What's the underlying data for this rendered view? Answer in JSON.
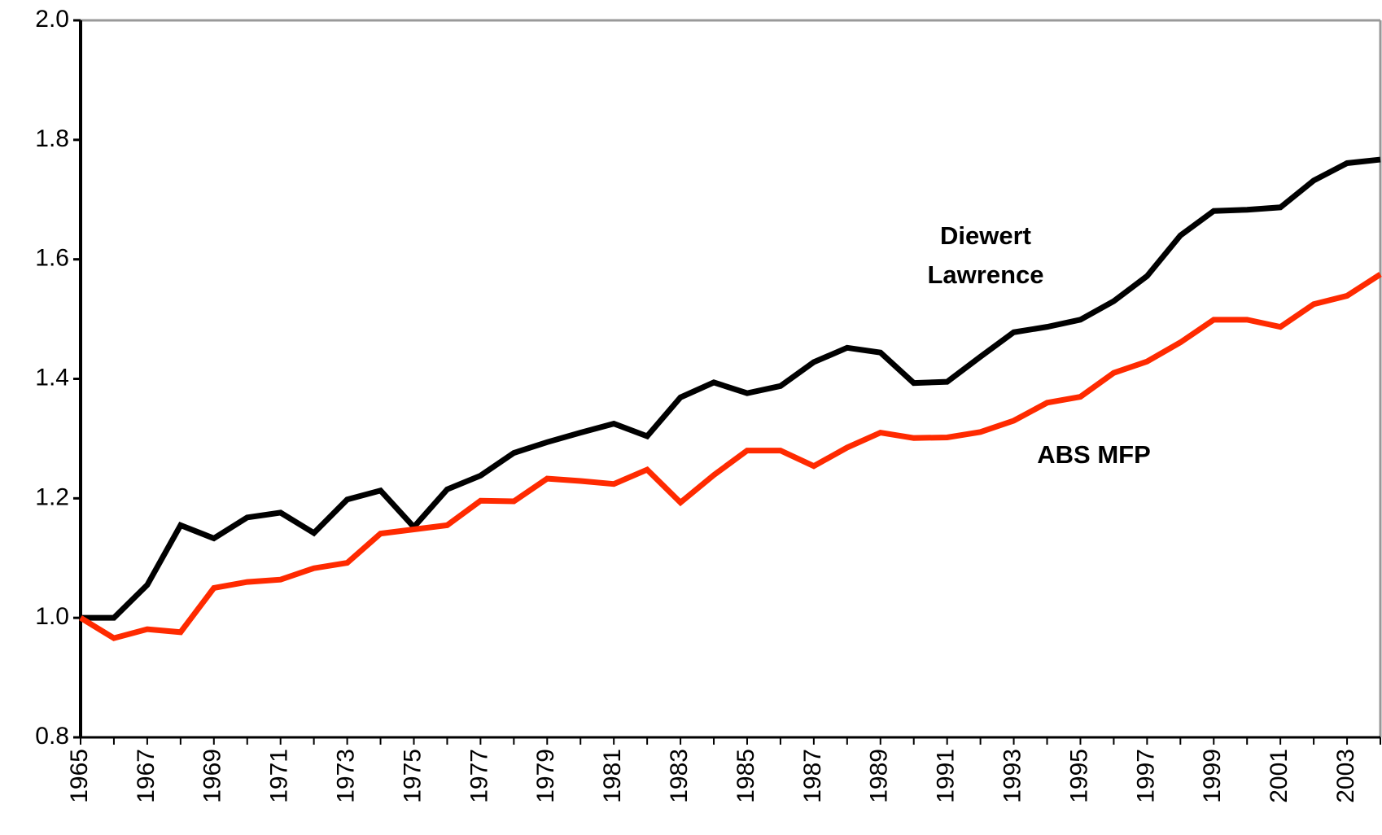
{
  "chart_data": {
    "type": "line",
    "x": [
      1965,
      1966,
      1967,
      1968,
      1969,
      1970,
      1971,
      1972,
      1973,
      1974,
      1975,
      1976,
      1977,
      1978,
      1979,
      1980,
      1981,
      1982,
      1983,
      1984,
      1985,
      1986,
      1987,
      1988,
      1989,
      1990,
      1991,
      1992,
      1993,
      1994,
      1995,
      1996,
      1997,
      1998,
      1999,
      2000,
      2001,
      2002,
      2003,
      2004
    ],
    "series": [
      {
        "name": "Diewert Lawrence",
        "color": "#000000",
        "values": [
          1.0,
          1.0,
          1.055,
          1.155,
          1.133,
          1.168,
          1.176,
          1.142,
          1.198,
          1.213,
          1.152,
          1.215,
          1.238,
          1.276,
          1.294,
          1.31,
          1.325,
          1.304,
          1.369,
          1.394,
          1.376,
          1.388,
          1.428,
          1.452,
          1.444,
          1.393,
          1.395,
          1.437,
          1.478,
          1.487,
          1.499,
          1.53,
          1.572,
          1.64,
          1.681,
          1.683,
          1.687,
          1.732,
          1.761,
          1.767
        ]
      },
      {
        "name": "ABS MFP",
        "color": "#ff2a00",
        "values": [
          1.0,
          0.966,
          0.981,
          0.976,
          1.05,
          1.06,
          1.064,
          1.083,
          1.092,
          1.141,
          1.148,
          1.155,
          1.196,
          1.195,
          1.233,
          1.229,
          1.224,
          1.248,
          1.193,
          1.239,
          1.28,
          1.28,
          1.254,
          1.285,
          1.31,
          1.301,
          1.302,
          1.311,
          1.33,
          1.36,
          1.37,
          1.41,
          1.429,
          1.461,
          1.499,
          1.499,
          1.487,
          1.525,
          1.539,
          1.575
        ]
      }
    ],
    "xlim": [
      1965,
      2004
    ],
    "xticks": [
      1965,
      1967,
      1969,
      1971,
      1973,
      1975,
      1977,
      1979,
      1981,
      1983,
      1985,
      1987,
      1989,
      1991,
      1993,
      1995,
      1997,
      1999,
      2001,
      2003
    ],
    "ylim": [
      0.8,
      2.0
    ],
    "yticks": [
      0.8,
      {
        "value": 1,
        "label": "1.0"
      },
      1.2,
      1.4,
      1.6,
      1.8,
      {
        "value": 2,
        "label": "2.0"
      }
    ],
    "grid": false
  }
}
